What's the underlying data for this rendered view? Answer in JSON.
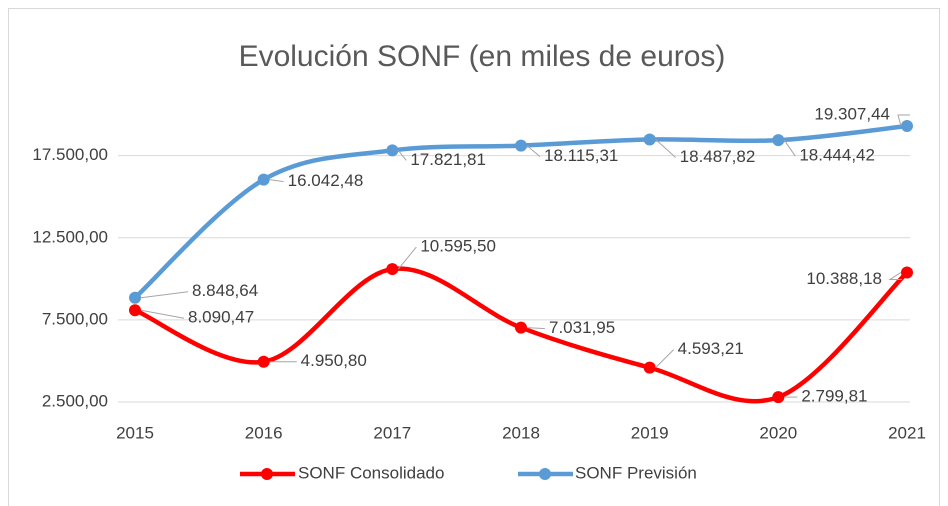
{
  "chart_data": {
    "type": "line",
    "title": "Evolución SONF (en miles de euros)",
    "categories": [
      "2015",
      "2016",
      "2017",
      "2018",
      "2019",
      "2020",
      "2021"
    ],
    "series": [
      {
        "name": "SONF Consolidado",
        "color": "#ff0000",
        "values": [
          8090.47,
          4950.8,
          10595.5,
          7031.95,
          4593.21,
          2799.81,
          10388.18
        ],
        "value_labels": [
          "8.090,47",
          "4.950,80",
          "10.595,50",
          "7.031,95",
          "4.593,21",
          "2.799,81",
          "10.388,18"
        ]
      },
      {
        "name": "SONF Previsión",
        "color": "#5b9bd5",
        "values": [
          8848.64,
          16042.48,
          17821.81,
          18115.31,
          18487.82,
          18444.42,
          19307.44
        ],
        "value_labels": [
          "8.848,64",
          "16.042,48",
          "17.821,81",
          "18.115,31",
          "18.487,82",
          "18.444,42",
          "19.307,44"
        ]
      }
    ],
    "ylim": [
      2500,
      21500
    ],
    "yticks": [
      {
        "value": 2500,
        "label": "2.500,00"
      },
      {
        "value": 7500,
        "label": "7.500,00"
      },
      {
        "value": 12500,
        "label": "12.500,00"
      },
      {
        "value": 17500,
        "label": "17.500,00"
      }
    ],
    "grid": true,
    "smooth": true,
    "legend": "bottom"
  }
}
